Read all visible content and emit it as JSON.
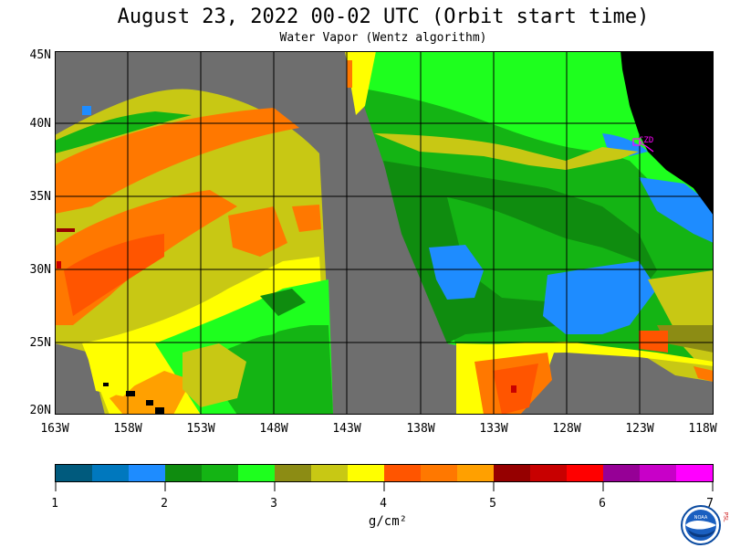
{
  "header": {
    "title": "August 23, 2022  00-02 UTC  (Orbit start time)",
    "subtitle": "Water Vapor (Wentz algorithm)"
  },
  "map": {
    "lat_labels": [
      "45N",
      "40N",
      "35N",
      "30N",
      "25N",
      "20N"
    ],
    "lon_labels": [
      "163W",
      "158W",
      "153W",
      "148W",
      "143W",
      "138W",
      "133W",
      "128W",
      "123W",
      "118W"
    ],
    "station_label": "CZD",
    "colors": {
      "no_data": "#6e6e6e",
      "land": "#000000",
      "grid": "#000000",
      "station": "#ff00ff"
    }
  },
  "colorbar": {
    "tick_labels": [
      "1",
      "2",
      "3",
      "4",
      "5",
      "6",
      "7"
    ],
    "units": "g/cm²",
    "colors": [
      "#005a7d",
      "#0078be",
      "#1e8cff",
      "#0f8c0f",
      "#14b414",
      "#1eff1e",
      "#8c8c14",
      "#c8c814",
      "#ffff00",
      "#ff5500",
      "#ff7800",
      "#ffa000",
      "#960000",
      "#c80000",
      "#ff0000",
      "#960096",
      "#c800c8",
      "#ff00ff"
    ]
  },
  "logo": {
    "text": "NOAA",
    "side_text": "PSL"
  }
}
